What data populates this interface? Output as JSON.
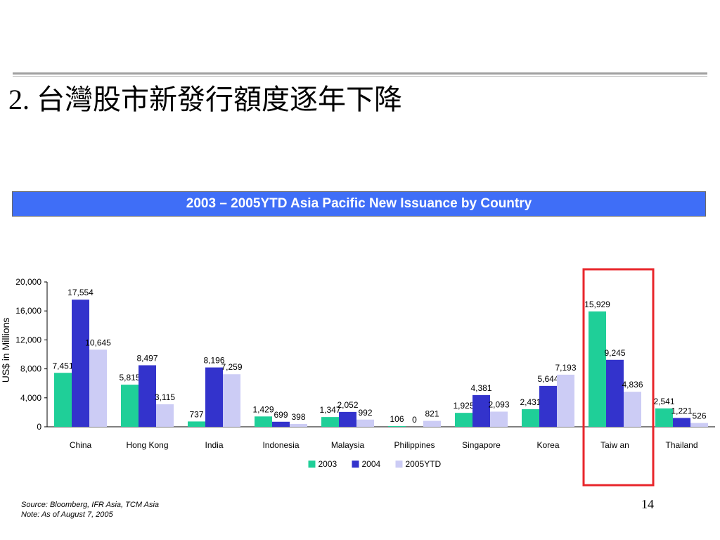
{
  "slide": {
    "title": "2. 台灣股市新發行額度逐年下降",
    "banner": "2003 – 2005YTD Asia Pacific New Issuance by Country",
    "source": "Source: Bloomberg, IFR Asia, TCM Asia",
    "note": "Note: As of August 7, 2005",
    "page_number": "14"
  },
  "colors": {
    "banner": "#3f6ef7",
    "highlight_box": "#e8262b",
    "s2003": "#1fcf98",
    "s2004": "#3333cc",
    "s2005": "#ccccf5"
  },
  "chart_data": {
    "type": "bar",
    "title": "2003 – 2005YTD Asia Pacific New Issuance by Country",
    "ylabel": "US$ in Millions",
    "xlabel": "",
    "ylim": [
      0,
      20000
    ],
    "yticks": [
      "0",
      "4,000",
      "8,000",
      "12,000",
      "16,000",
      "20,000"
    ],
    "grid": false,
    "legend": "bottom-center",
    "highlight_category": "Taiw an",
    "categories": [
      "China",
      "Hong Kong",
      "India",
      "Indonesia",
      "Malaysia",
      "Philippines",
      "Singapore",
      "Korea",
      "Taiw an",
      "Thailand"
    ],
    "series": [
      {
        "name": "2003",
        "color": "#1fcf98",
        "values": [
          7451,
          5815,
          737,
          1429,
          1347,
          106,
          1925,
          2431,
          15929,
          2541
        ],
        "labels": [
          "7,451",
          "5,815",
          "737",
          "1,429",
          "1,347",
          "106",
          "1,925",
          "2,431",
          "15,929",
          "2,541"
        ]
      },
      {
        "name": "2004",
        "color": "#3333cc",
        "values": [
          17554,
          8497,
          8196,
          699,
          2052,
          0,
          4381,
          5644,
          9245,
          1221
        ],
        "labels": [
          "17,554",
          "8,497",
          "8,196",
          "699",
          "2,052",
          "0",
          "4,381",
          "5,644",
          "9,245",
          "1,221"
        ]
      },
      {
        "name": "2005YTD",
        "color": "#ccccf5",
        "values": [
          10645,
          3115,
          7259,
          398,
          992,
          821,
          2093,
          7193,
          4836,
          526
        ],
        "labels": [
          "10,645",
          "3,115",
          "7,259",
          "398",
          "992",
          "821",
          "2,093",
          "7,193",
          "4,836",
          "526"
        ]
      }
    ]
  }
}
